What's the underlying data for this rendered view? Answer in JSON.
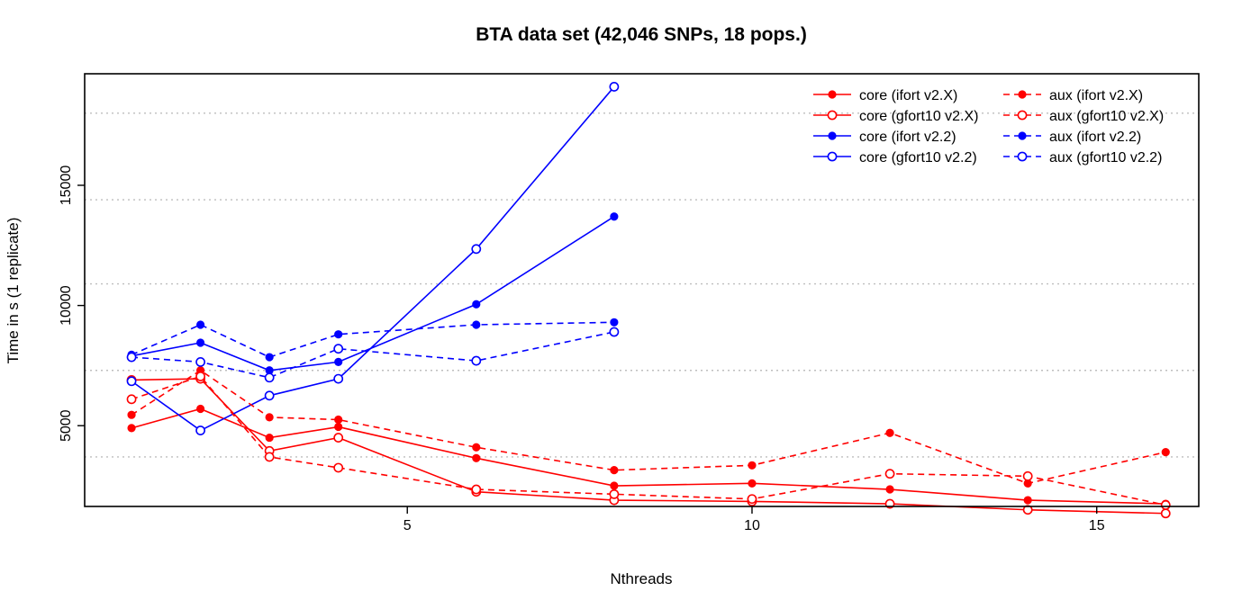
{
  "chart_data": {
    "type": "line",
    "title": "BTA data set (42,046 SNPs, 18 pops.)",
    "xlabel": "Nthreads",
    "ylabel": "Time in s (1 replicate)",
    "xlim": [
      0.32,
      16.48
    ],
    "ylim": [
      1640,
      19640
    ],
    "x_ticks": [
      5,
      10,
      15
    ],
    "y_ticks": [
      5000,
      10000,
      15000
    ],
    "hgrid": [
      3700,
      7300,
      10900,
      14400,
      18000
    ],
    "legend_position": "top-right",
    "series": [
      {
        "name": "core (ifort v2.X)",
        "color": "#ff0000",
        "dash": false,
        "marker": "filled",
        "x": [
          1,
          2,
          3,
          4,
          6,
          8,
          10,
          12,
          14,
          16
        ],
        "y": [
          4900,
          5700,
          4500,
          4950,
          3650,
          2500,
          2600,
          2350,
          1900,
          1750
        ]
      },
      {
        "name": "core (gfort10 v2.X)",
        "color": "#ff0000",
        "dash": false,
        "marker": "open",
        "x": [
          1,
          2,
          3,
          4,
          6,
          8,
          10,
          12,
          14,
          16
        ],
        "y": [
          6900,
          6950,
          3950,
          4500,
          2250,
          1900,
          1850,
          1750,
          1500,
          1350
        ]
      },
      {
        "name": "core (ifort v2.2)",
        "color": "#0000ff",
        "dash": false,
        "marker": "filled",
        "x": [
          1,
          2,
          3,
          4,
          6,
          8
        ],
        "y": [
          7900,
          8450,
          7300,
          7650,
          10050,
          13700
        ]
      },
      {
        "name": "core (gfort10 v2.2)",
        "color": "#0000ff",
        "dash": false,
        "marker": "open",
        "x": [
          1,
          2,
          3,
          4,
          6,
          8
        ],
        "y": [
          6850,
          4800,
          6250,
          6950,
          12350,
          19100
        ]
      },
      {
        "name": "aux (ifort v2.X)",
        "color": "#ff0000",
        "dash": true,
        "marker": "filled",
        "x": [
          1,
          2,
          3,
          4,
          6,
          8,
          10,
          12,
          14,
          16
        ],
        "y": [
          5450,
          7300,
          5350,
          5250,
          4100,
          3150,
          3350,
          4700,
          2600,
          3900
        ]
      },
      {
        "name": "aux (gfort10 v2.X)",
        "color": "#ff0000",
        "dash": true,
        "marker": "open",
        "x": [
          1,
          2,
          3,
          4,
          6,
          8,
          10,
          12,
          14,
          16
        ],
        "y": [
          6100,
          7050,
          3700,
          3250,
          2350,
          2150,
          1950,
          3000,
          2900,
          1700
        ]
      },
      {
        "name": "aux (ifort v2.2)",
        "color": "#0000ff",
        "dash": true,
        "marker": "filled",
        "x": [
          1,
          2,
          3,
          4,
          6,
          8
        ],
        "y": [
          7950,
          9200,
          7850,
          8800,
          9200,
          9300
        ]
      },
      {
        "name": "aux (gfort10 v2.2)",
        "color": "#0000ff",
        "dash": true,
        "marker": "open",
        "x": [
          1,
          2,
          3,
          4,
          6,
          8
        ],
        "y": [
          7850,
          7650,
          7000,
          8200,
          7700,
          8900
        ]
      }
    ]
  }
}
